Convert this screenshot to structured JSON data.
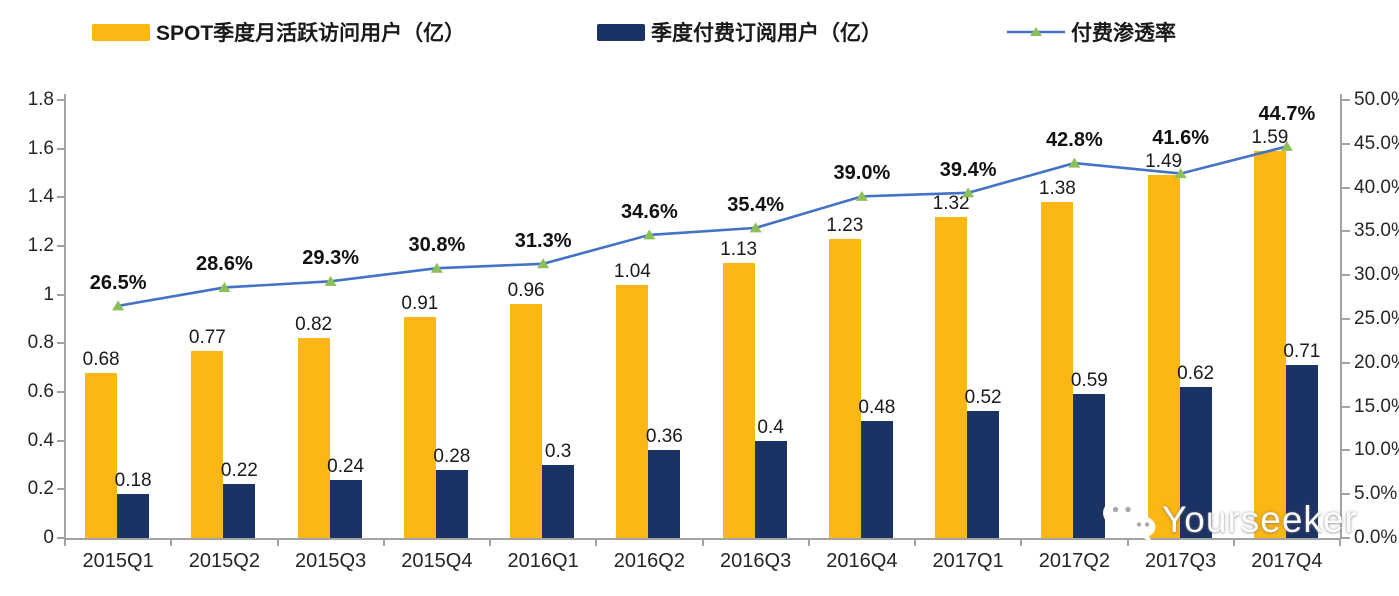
{
  "legend": [
    {
      "label": "SPOT季度月活跃访问用户（亿）",
      "type": "bar",
      "color": "#FBB714"
    },
    {
      "label": "季度付费订阅用户（亿）",
      "type": "bar",
      "color": "#1B3264"
    },
    {
      "label": "付费渗透率",
      "type": "line",
      "line_color": "#4472C4",
      "marker": "triangle",
      "marker_color": "#8CBF58"
    }
  ],
  "watermark": {
    "text": "Yourseeker",
    "icon": "wechat-bubbles-icon"
  },
  "chart_data": {
    "type": "bar+line combo",
    "categories": [
      "2015Q1",
      "2015Q2",
      "2015Q3",
      "2015Q4",
      "2016Q1",
      "2016Q2",
      "2016Q3",
      "2016Q4",
      "2017Q1",
      "2017Q2",
      "2017Q3",
      "2017Q4"
    ],
    "series": [
      {
        "name": "SPOT季度月活跃访问用户（亿）",
        "type": "bar",
        "axis": "left",
        "color": "#FBB714",
        "values": [
          0.68,
          0.77,
          0.82,
          0.91,
          0.96,
          1.04,
          1.13,
          1.23,
          1.32,
          1.38,
          1.49,
          1.59
        ],
        "labels": [
          "0.68",
          "0.77",
          "0.82",
          "0.91",
          "0.96",
          "1.04",
          "1.13",
          "1.23",
          "1.32",
          "1.38",
          "1.49",
          "1.59"
        ]
      },
      {
        "name": "季度付费订阅用户（亿）",
        "type": "bar",
        "axis": "left",
        "color": "#1B3264",
        "values": [
          0.18,
          0.22,
          0.24,
          0.28,
          0.3,
          0.36,
          0.4,
          0.48,
          0.52,
          0.59,
          0.62,
          0.71
        ],
        "labels": [
          "0.18",
          "0.22",
          "0.24",
          "0.28",
          "0.3",
          "0.36",
          "0.4",
          "0.48",
          "0.52",
          "0.59",
          "0.62",
          "0.71"
        ]
      },
      {
        "name": "付费渗透率",
        "type": "line",
        "axis": "right",
        "color": "#4472C4",
        "marker": "triangle",
        "marker_color": "#8CBF58",
        "values": [
          26.5,
          28.6,
          29.3,
          30.8,
          31.3,
          34.6,
          35.4,
          39.0,
          39.4,
          42.8,
          41.6,
          44.7
        ],
        "labels": [
          "26.5%",
          "28.6%",
          "29.3%",
          "30.8%",
          "31.3%",
          "34.6%",
          "35.4%",
          "39.0%",
          "39.4%",
          "42.8%",
          "41.6%",
          "44.7%"
        ]
      }
    ],
    "left_axis": {
      "min": 0,
      "max": 1.8,
      "step": 0.2,
      "tick_labels": [
        "0",
        "0.2",
        "0.4",
        "0.6",
        "0.8",
        "1",
        "1.2",
        "1.4",
        "1.6",
        "1.8"
      ]
    },
    "right_axis": {
      "min": 0,
      "max": 50,
      "step": 5,
      "tick_labels": [
        "0.0%",
        "5.0%",
        "10.0%",
        "15.0%",
        "20.0%",
        "25.0%",
        "30.0%",
        "35.0%",
        "40.0%",
        "45.0%",
        "50.0%"
      ]
    },
    "grid": false,
    "legend_position": "top"
  }
}
